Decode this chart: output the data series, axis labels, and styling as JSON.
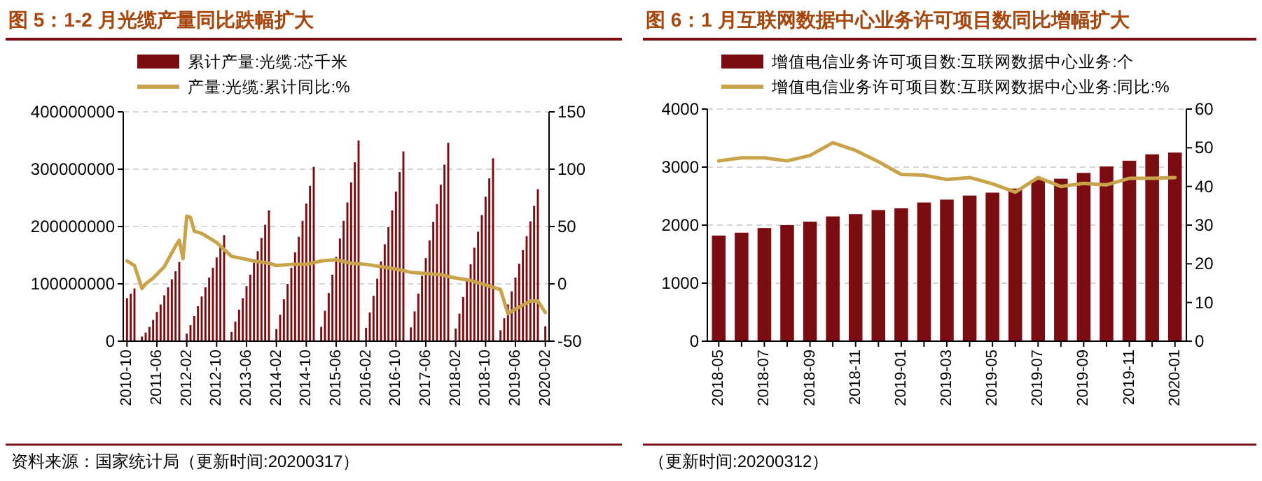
{
  "chart_data": [
    {
      "type": "bar",
      "title": "图 5：1-2 月光缆产量同比跌幅扩大",
      "x": [
        "2010-10",
        "2010-11",
        "2010-12",
        "2011-02",
        "2011-03",
        "2011-04",
        "2011-05",
        "2011-06",
        "2011-07",
        "2011-08",
        "2011-09",
        "2011-10",
        "2011-11",
        "2011-12",
        "2012-02",
        "2012-03",
        "2012-04",
        "2012-05",
        "2012-06",
        "2012-07",
        "2012-08",
        "2012-09",
        "2012-10",
        "2012-11",
        "2012-12",
        "2013-02",
        "2013-03",
        "2013-04",
        "2013-05",
        "2013-06",
        "2013-07",
        "2013-08",
        "2013-09",
        "2013-10",
        "2013-11",
        "2013-12",
        "2014-02",
        "2014-03",
        "2014-04",
        "2014-05",
        "2014-06",
        "2014-07",
        "2014-08",
        "2014-09",
        "2014-10",
        "2014-11",
        "2014-12",
        "2015-02",
        "2015-03",
        "2015-04",
        "2015-05",
        "2015-06",
        "2015-07",
        "2015-08",
        "2015-09",
        "2015-10",
        "2015-11",
        "2015-12",
        "2016-02",
        "2016-03",
        "2016-04",
        "2016-05",
        "2016-06",
        "2016-07",
        "2016-08",
        "2016-09",
        "2016-10",
        "2016-11",
        "2016-12",
        "2017-02",
        "2017-03",
        "2017-04",
        "2017-05",
        "2017-06",
        "2017-07",
        "2017-08",
        "2017-09",
        "2017-10",
        "2017-11",
        "2017-12",
        "2018-02",
        "2018-03",
        "2018-04",
        "2018-05",
        "2018-06",
        "2018-07",
        "2018-08",
        "2018-09",
        "2018-10",
        "2018-11",
        "2018-12",
        "2019-02",
        "2019-03",
        "2019-04",
        "2019-05",
        "2019-06",
        "2019-07",
        "2019-08",
        "2019-09",
        "2019-10",
        "2019-11",
        "2019-12",
        "2020-02"
      ],
      "series": [
        {
          "name": "累计产量:光缆:芯千米",
          "color": "#7b0c12",
          "values": [
            75000000,
            83000000,
            92000000,
            8000000,
            15000000,
            25000000,
            37000000,
            51000000,
            64000000,
            80000000,
            94000000,
            108000000,
            122000000,
            138000000,
            13000000,
            28000000,
            44000000,
            61000000,
            78000000,
            94000000,
            111000000,
            128000000,
            146000000,
            165000000,
            185000000,
            16000000,
            34000000,
            55000000,
            75000000,
            96000000,
            116000000,
            137000000,
            157000000,
            180000000,
            203000000,
            228000000,
            21000000,
            46000000,
            73000000,
            100000000,
            128000000,
            155000000,
            182000000,
            210000000,
            240000000,
            271000000,
            304000000,
            25000000,
            53000000,
            84000000,
            116000000,
            147000000,
            179000000,
            210000000,
            242000000,
            277000000,
            312000000,
            350000000,
            23000000,
            50000000,
            79000000,
            109000000,
            139000000,
            169000000,
            199000000,
            228000000,
            261000000,
            295000000,
            331000000,
            24000000,
            52000000,
            83000000,
            114000000,
            145000000,
            176000000,
            208000000,
            239000000,
            273000000,
            308000000,
            346000000,
            22000000,
            48000000,
            77000000,
            105000000,
            134000000,
            163000000,
            191000000,
            220000000,
            252000000,
            284000000,
            319000000,
            19000000,
            40000000,
            64000000,
            87000000,
            111000000,
            135000000,
            159000000,
            183000000,
            209000000,
            236000000,
            265000000,
            26000000
          ]
        },
        {
          "name": "产量:光缆:累计同比:%",
          "color": "#c8a34a",
          "type": "line",
          "axis": "y2",
          "x": [
            "2010-10",
            "2010-12",
            "2011-02",
            "2011-03",
            "2011-05",
            "2011-08",
            "2011-11",
            "2011-12",
            "2012-01",
            "2012-02",
            "2012-03",
            "2012-04",
            "2012-06",
            "2012-09",
            "2012-10",
            "2012-12",
            "2013-02",
            "2013-05",
            "2013-08",
            "2013-12",
            "2014-02",
            "2014-06",
            "2014-10",
            "2015-02",
            "2015-06",
            "2015-10",
            "2016-02",
            "2016-06",
            "2016-10",
            "2017-02",
            "2017-06",
            "2017-10",
            "2018-02",
            "2018-06",
            "2018-12",
            "2019-02",
            "2019-04",
            "2019-06",
            "2019-10",
            "2019-12",
            "2020-02"
          ],
          "values": [
            20,
            16,
            -4,
            0,
            5,
            15,
            33,
            38,
            22,
            59,
            58,
            46,
            44,
            38,
            36,
            30,
            24,
            22,
            20,
            18,
            16,
            17,
            17,
            20,
            21,
            18,
            17,
            15,
            13,
            10,
            9,
            8,
            5,
            3,
            -3,
            -5,
            -26,
            -22,
            -15,
            -15,
            -25
          ]
        }
      ],
      "xlim": [
        "2010-09",
        "2020-03"
      ],
      "xticks": [
        "2010-10",
        "2011-06",
        "2012-02",
        "2012-10",
        "2013-06",
        "2014-02",
        "2014-10",
        "2015-06",
        "2016-02",
        "2016-10",
        "2017-06",
        "2018-02",
        "2018-10",
        "2019-06",
        "2020-02"
      ],
      "ylim": [
        0,
        400000000
      ],
      "yticks": [
        0,
        100000000,
        200000000,
        300000000,
        400000000
      ],
      "y2lim": [
        -50,
        150
      ],
      "y2ticks": [
        -50,
        0,
        50,
        100,
        150
      ],
      "grid": "y",
      "legend": "top",
      "annotations": [
        "资料来源：国家统计局（更新时间:20200317）"
      ]
    },
    {
      "type": "bar",
      "title": "图 6：1 月互联网数据中心业务许可项目数同比增幅扩大",
      "categories": [
        "2018-05",
        null,
        "2018-07",
        null,
        "2018-09",
        null,
        "2018-11",
        null,
        "2019-01",
        null,
        "2019-03",
        null,
        "2019-05",
        null,
        "2019-07",
        null,
        "2019-09",
        null,
        "2019-11",
        null,
        "2020-01"
      ],
      "series": [
        {
          "name": "增值电信业务许可项目数:互联网数据中心业务:个",
          "color": "#7b0c12",
          "values": [
            1820,
            1870,
            1950,
            2000,
            2060,
            2150,
            2190,
            2260,
            2290,
            2390,
            2440,
            2510,
            2560,
            2630,
            2780,
            2800,
            2900,
            3010,
            3110,
            3220,
            3250
          ]
        },
        {
          "name": "增值电信业务许可项目数:互联网数据中心业务:同比:%",
          "color": "#c8a34a",
          "type": "line",
          "axis": "y2",
          "values": [
            46.6,
            47.4,
            47.4,
            46.6,
            48,
            51.3,
            49.3,
            46.4,
            43.1,
            42.9,
            41.8,
            42.3,
            40.7,
            38.5,
            42.3,
            40,
            40.8,
            40.4,
            42.1,
            42.1,
            42.3
          ]
        }
      ],
      "ylim": [
        0,
        4000
      ],
      "yticks": [
        0,
        1000,
        2000,
        3000,
        4000
      ],
      "y2lim": [
        0,
        60
      ],
      "y2ticks": [
        0,
        10,
        20,
        30,
        40,
        50,
        60
      ],
      "grid": "y",
      "legend": "top",
      "annotations": [
        "（更新时间:20200312）"
      ]
    }
  ]
}
